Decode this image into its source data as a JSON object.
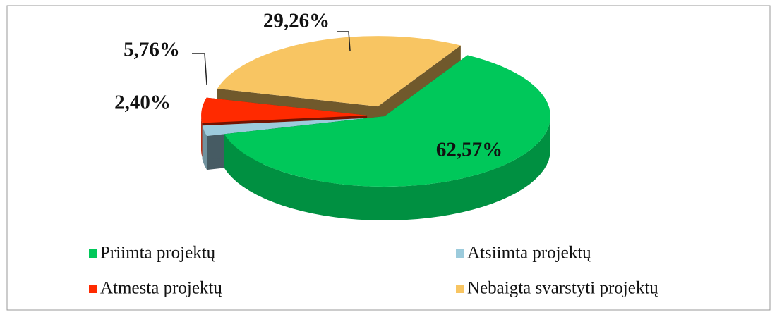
{
  "chart_data": {
    "type": "pie",
    "categories": [
      "Priimta projektų",
      "Atsiimta projektų",
      "Atmesta projektų",
      "Nebaigta svarstyti projektų"
    ],
    "values": [
      62.57,
      2.4,
      5.76,
      29.26
    ],
    "value_labels": [
      "62,57%",
      "2,40%",
      "5,76%",
      "29,26%"
    ],
    "colors": [
      "#00c85a",
      "#9ccbdc",
      "#ff2a00",
      "#f8c562"
    ],
    "legend": "bottom"
  }
}
